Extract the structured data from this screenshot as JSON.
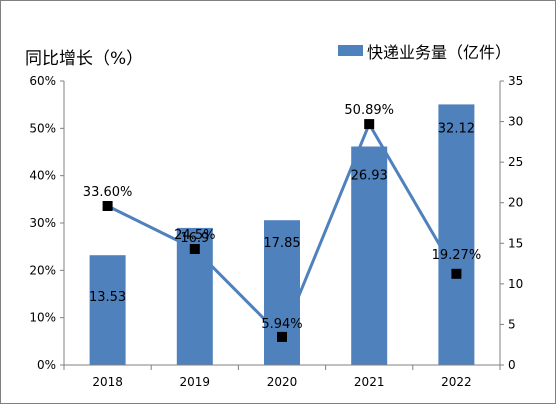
{
  "chart_data": {
    "type": "bar",
    "categories": [
      "2018",
      "2019",
      "2020",
      "2021",
      "2022"
    ],
    "series": [
      {
        "name": "快递业务量（亿件）",
        "type": "bar",
        "axis": "right",
        "values": [
          13.53,
          16.9,
          17.85,
          26.93,
          32.12
        ],
        "labels": [
          "13.53",
          "16.9",
          "17.85",
          "26.93",
          "32.12"
        ]
      },
      {
        "type": "line",
        "axis": "left",
        "values": [
          33.6,
          24.5,
          5.94,
          50.89,
          19.27
        ],
        "labels": [
          "33.60%",
          "24.5%",
          "5.94%",
          "50.89%",
          "19.27%"
        ]
      }
    ],
    "left_axis": {
      "title": "同比增长（%）",
      "range": [
        0,
        60
      ],
      "ticks": [
        "0%",
        "10%",
        "20%",
        "30%",
        "40%",
        "50%",
        "60%"
      ]
    },
    "right_axis": {
      "range": [
        0,
        35
      ],
      "ticks": [
        "0",
        "5",
        "10",
        "15",
        "20",
        "25",
        "30",
        "35"
      ]
    },
    "legend_position": "top-right",
    "grid": false,
    "colors": {
      "bar": "#4f81bd",
      "line": "#4f81bd",
      "marker": "#000000"
    }
  }
}
